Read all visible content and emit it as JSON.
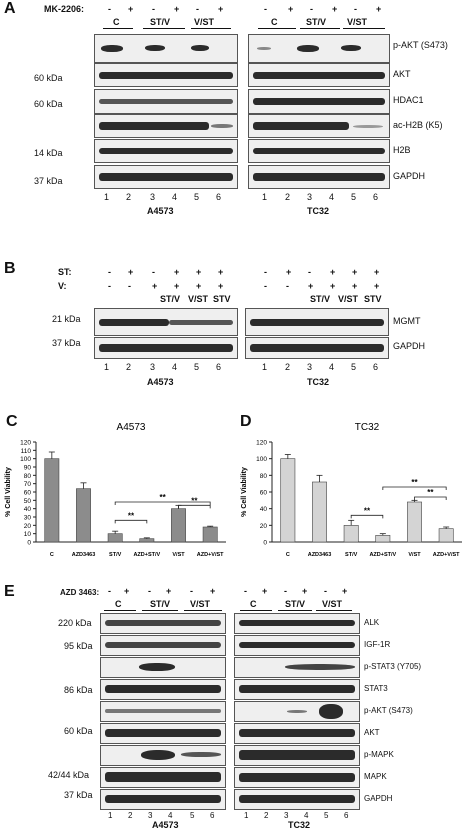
{
  "panels": {
    "A": {
      "letter": "A",
      "treatment_label": "MK-2206:",
      "treatments": [
        "-",
        "+",
        "-",
        "+",
        "-",
        "+"
      ],
      "groups": [
        "C",
        "ST/V",
        "V/ST"
      ],
      "mw": [
        "60 kDa",
        "60 kDa",
        "14 kDa",
        "37 kDa"
      ],
      "proteins": [
        "p-AKT (S473)",
        "AKT",
        "HDAC1",
        "ac-H2B (K5)",
        "H2B",
        "GAPDH"
      ],
      "lanes": [
        "1",
        "2",
        "3",
        "4",
        "5",
        "6"
      ],
      "cells": [
        "A4573",
        "TC32"
      ]
    },
    "B": {
      "letter": "B",
      "st_label": "ST:",
      "v_label": "V:",
      "st_signs": [
        "-",
        "+",
        "-",
        "+",
        "+",
        "+"
      ],
      "v_signs": [
        "-",
        "-",
        "+",
        "+",
        "+",
        "+"
      ],
      "combos": [
        "ST/V",
        "V/ST",
        "STV"
      ],
      "mw": [
        "21 kDa",
        "37 kDa"
      ],
      "proteins": [
        "MGMT",
        "GAPDH"
      ],
      "lanes": [
        "1",
        "2",
        "3",
        "4",
        "5",
        "6"
      ],
      "cells": [
        "A4573",
        "TC32"
      ]
    },
    "C": {
      "letter": "C"
    },
    "D": {
      "letter": "D"
    },
    "E": {
      "letter": "E",
      "treatment_label": "AZD 3463:",
      "treatments": [
        "-",
        "+",
        "-",
        "+",
        "-",
        "+"
      ],
      "groups": [
        "C",
        "ST/V",
        "V/ST"
      ],
      "mw": [
        "220 kDa",
        "95 kDa",
        "86 kDa",
        "60 kDa",
        "42/44 kDa",
        "37 kDa"
      ],
      "proteins": [
        "ALK",
        "IGF-1R",
        "p-STAT3 (Y705)",
        "STAT3",
        "p-AKT (S473)",
        "AKT",
        "p-MAPK",
        "MAPK",
        "GAPDH"
      ],
      "lanes": [
        "1",
        "2",
        "3",
        "4",
        "5",
        "6"
      ],
      "cells": [
        "A4573",
        "TC32"
      ]
    }
  },
  "chart_data": [
    {
      "type": "bar",
      "title": "A4573",
      "ylabel": "% Cell Viability",
      "categories": [
        "C",
        "AZD3463",
        "ST/V",
        "AZD+ST/V",
        "V/ST",
        "AZD+V/ST"
      ],
      "values": [
        100,
        64,
        10,
        4,
        40,
        18
      ],
      "errors": [
        8,
        7,
        3,
        1,
        4,
        1
      ],
      "ylim": [
        0,
        120
      ],
      "yticks": [
        0,
        10,
        20,
        30,
        40,
        50,
        60,
        70,
        80,
        90,
        100,
        110,
        120
      ],
      "significance": [
        {
          "from": 2,
          "to": 3,
          "label": "**"
        },
        {
          "from": 2,
          "to": 5,
          "label": "**"
        },
        {
          "from": 4,
          "to": 5,
          "label": "**"
        }
      ],
      "color": "#8c8c8c"
    },
    {
      "type": "bar",
      "title": "TC32",
      "ylabel": "% Cell Viability",
      "categories": [
        "C",
        "AZD3463",
        "ST/V",
        "AZD+ST/V",
        "V/ST",
        "AZD+V/ST"
      ],
      "values": [
        100,
        72,
        20,
        8,
        48,
        16
      ],
      "errors": [
        5,
        8,
        6,
        2,
        2,
        2
      ],
      "ylim": [
        0,
        120
      ],
      "yticks": [
        0,
        20,
        40,
        60,
        80,
        100,
        120
      ],
      "significance": [
        {
          "from": 2,
          "to": 3,
          "label": "**"
        },
        {
          "from": 3,
          "to": 5,
          "label": "**"
        },
        {
          "from": 4,
          "to": 5,
          "label": "**"
        }
      ],
      "color": "#d4d4d4"
    }
  ]
}
